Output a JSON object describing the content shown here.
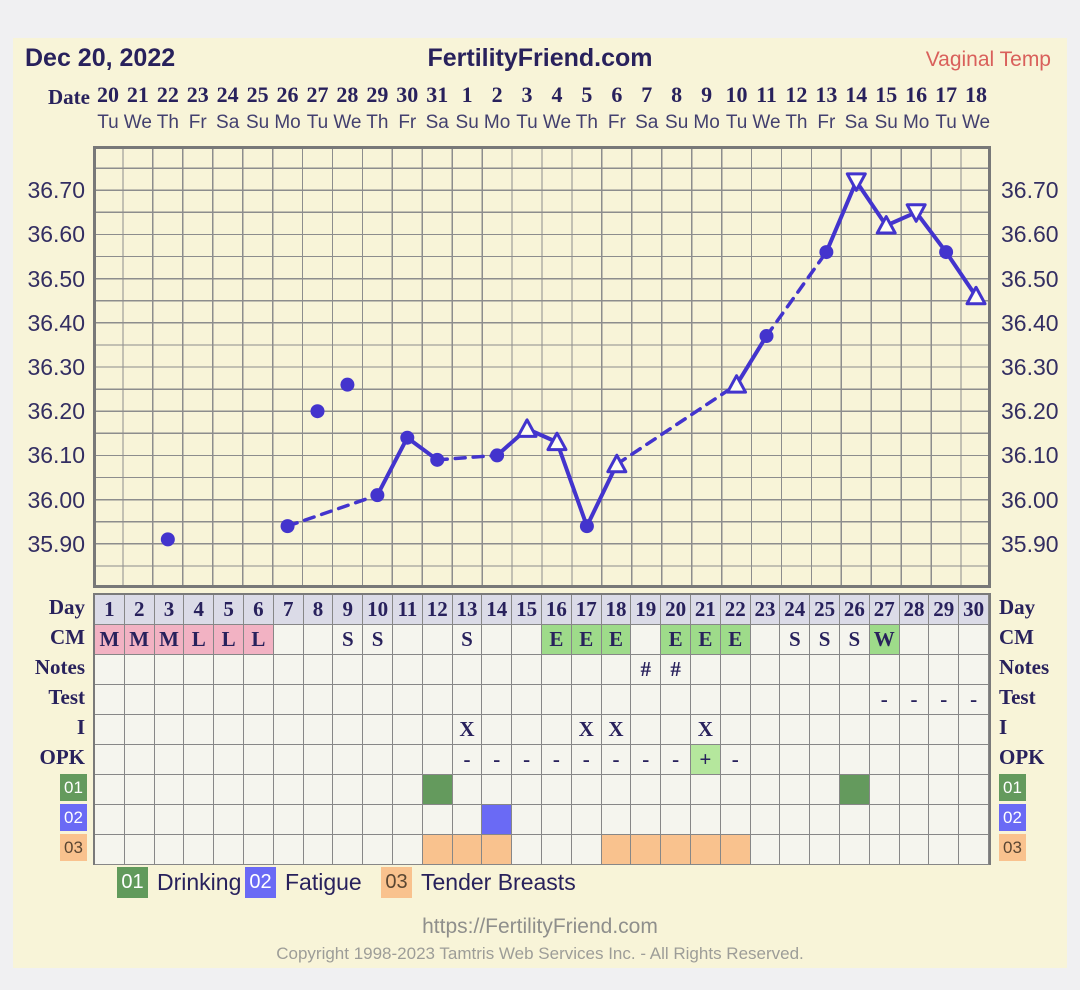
{
  "header": {
    "date": "Dec 20, 2022",
    "site": "FertilityFriend.com",
    "temp_type": "Vaginal Temp"
  },
  "calendar": {
    "date_label": "Date",
    "dates": [
      "20",
      "21",
      "22",
      "23",
      "24",
      "25",
      "26",
      "27",
      "28",
      "29",
      "30",
      "31",
      "1",
      "2",
      "3",
      "4",
      "5",
      "6",
      "7",
      "8",
      "9",
      "10",
      "11",
      "12",
      "13",
      "14",
      "15",
      "16",
      "17",
      "18"
    ],
    "weekdays": [
      "Tu",
      "We",
      "Th",
      "Fr",
      "Sa",
      "Su",
      "Mo",
      "Tu",
      "We",
      "Th",
      "Fr",
      "Sa",
      "Su",
      "Mo",
      "Tu",
      "We",
      "Th",
      "Fr",
      "Sa",
      "Su",
      "Mo",
      "Tu",
      "We",
      "Th",
      "Fr",
      "Sa",
      "Su",
      "Mo",
      "Tu",
      "We"
    ]
  },
  "chart_data": {
    "type": "line",
    "series_name": "Vaginal Temp",
    "x_axis": {
      "label": "Day",
      "columns": 30
    },
    "y_axis": {
      "min": 35.8,
      "max": 36.8,
      "grid_step": 0.05,
      "tick_labels": [
        "36.70",
        "36.60",
        "36.50",
        "36.40",
        "36.30",
        "36.20",
        "36.10",
        "36.00",
        "35.90"
      ]
    },
    "points": [
      {
        "day": 3,
        "temp": 35.91,
        "marker": "circle"
      },
      {
        "day": 7,
        "temp": 35.94,
        "marker": "circle"
      },
      {
        "day": 8,
        "temp": 36.2,
        "marker": "circle"
      },
      {
        "day": 9,
        "temp": 36.26,
        "marker": "circle"
      },
      {
        "day": 10,
        "temp": 36.01,
        "marker": "circle"
      },
      {
        "day": 11,
        "temp": 36.14,
        "marker": "circle"
      },
      {
        "day": 12,
        "temp": 36.09,
        "marker": "circle"
      },
      {
        "day": 14,
        "temp": 36.1,
        "marker": "circle"
      },
      {
        "day": 15,
        "temp": 36.16,
        "marker": "triangle-up"
      },
      {
        "day": 16,
        "temp": 36.13,
        "marker": "triangle-up"
      },
      {
        "day": 17,
        "temp": 35.94,
        "marker": "circle"
      },
      {
        "day": 18,
        "temp": 36.08,
        "marker": "triangle-up"
      },
      {
        "day": 22,
        "temp": 36.26,
        "marker": "triangle-up"
      },
      {
        "day": 23,
        "temp": 36.37,
        "marker": "circle"
      },
      {
        "day": 25,
        "temp": 36.56,
        "marker": "circle"
      },
      {
        "day": 26,
        "temp": 36.72,
        "marker": "triangle-down"
      },
      {
        "day": 27,
        "temp": 36.62,
        "marker": "triangle-up"
      },
      {
        "day": 28,
        "temp": 36.65,
        "marker": "triangle-down"
      },
      {
        "day": 29,
        "temp": 36.56,
        "marker": "circle"
      },
      {
        "day": 30,
        "temp": 36.46,
        "marker": "triangle-up"
      }
    ],
    "segments": [
      {
        "from": 7,
        "to": 10,
        "style": "dashed"
      },
      {
        "from": 10,
        "to": 11,
        "style": "solid"
      },
      {
        "from": 11,
        "to": 12,
        "style": "solid"
      },
      {
        "from": 12,
        "to": 14,
        "style": "dashed"
      },
      {
        "from": 14,
        "to": 15,
        "style": "solid"
      },
      {
        "from": 15,
        "to": 16,
        "style": "solid"
      },
      {
        "from": 16,
        "to": 17,
        "style": "solid"
      },
      {
        "from": 17,
        "to": 18,
        "style": "solid"
      },
      {
        "from": 18,
        "to": 22,
        "style": "dashed"
      },
      {
        "from": 22,
        "to": 23,
        "style": "solid"
      },
      {
        "from": 23,
        "to": 25,
        "style": "dashed"
      },
      {
        "from": 25,
        "to": 26,
        "style": "solid"
      },
      {
        "from": 26,
        "to": 27,
        "style": "solid"
      },
      {
        "from": 27,
        "to": 28,
        "style": "solid"
      },
      {
        "from": 28,
        "to": 29,
        "style": "solid"
      },
      {
        "from": 29,
        "to": 30,
        "style": "solid"
      }
    ]
  },
  "table": {
    "days": [
      "1",
      "2",
      "3",
      "4",
      "5",
      "6",
      "7",
      "8",
      "9",
      "10",
      "11",
      "12",
      "13",
      "14",
      "15",
      "16",
      "17",
      "18",
      "19",
      "20",
      "21",
      "22",
      "23",
      "24",
      "25",
      "26",
      "27",
      "28",
      "29",
      "30"
    ],
    "rows": [
      {
        "id": "day",
        "label": "Day",
        "kind": "days"
      },
      {
        "id": "cm",
        "label": "CM",
        "kind": "cells",
        "cells": [
          {
            "day": 1,
            "text": "M",
            "bg": "pink"
          },
          {
            "day": 2,
            "text": "M",
            "bg": "pink"
          },
          {
            "day": 3,
            "text": "M",
            "bg": "pink"
          },
          {
            "day": 4,
            "text": "L",
            "bg": "pink"
          },
          {
            "day": 5,
            "text": "L",
            "bg": "pink"
          },
          {
            "day": 6,
            "text": "L",
            "bg": "pink"
          },
          {
            "day": 9,
            "text": "S"
          },
          {
            "day": 10,
            "text": "S"
          },
          {
            "day": 13,
            "text": "S"
          },
          {
            "day": 16,
            "text": "E",
            "bg": "green"
          },
          {
            "day": 17,
            "text": "E",
            "bg": "green"
          },
          {
            "day": 18,
            "text": "E",
            "bg": "green"
          },
          {
            "day": 20,
            "text": "E",
            "bg": "green"
          },
          {
            "day": 21,
            "text": "E",
            "bg": "green"
          },
          {
            "day": 22,
            "text": "E",
            "bg": "green"
          },
          {
            "day": 24,
            "text": "S"
          },
          {
            "day": 25,
            "text": "S"
          },
          {
            "day": 26,
            "text": "S"
          },
          {
            "day": 27,
            "text": "W",
            "bg": "green"
          }
        ]
      },
      {
        "id": "notes",
        "label": "Notes",
        "kind": "cells",
        "cells": [
          {
            "day": 19,
            "text": "#"
          },
          {
            "day": 20,
            "text": "#"
          }
        ]
      },
      {
        "id": "test",
        "label": "Test",
        "kind": "cells",
        "cells": [
          {
            "day": 27,
            "text": "-"
          },
          {
            "day": 28,
            "text": "-"
          },
          {
            "day": 29,
            "text": "-"
          },
          {
            "day": 30,
            "text": "-"
          }
        ]
      },
      {
        "id": "i",
        "label": "I",
        "kind": "cells",
        "cells": [
          {
            "day": 13,
            "text": "X"
          },
          {
            "day": 17,
            "text": "X"
          },
          {
            "day": 18,
            "text": "X"
          },
          {
            "day": 21,
            "text": "X"
          }
        ]
      },
      {
        "id": "opk",
        "label": "OPK",
        "kind": "cells",
        "cells": [
          {
            "day": 13,
            "text": "-"
          },
          {
            "day": 14,
            "text": "-"
          },
          {
            "day": 15,
            "text": "-"
          },
          {
            "day": 16,
            "text": "-"
          },
          {
            "day": 17,
            "text": "-"
          },
          {
            "day": 18,
            "text": "-"
          },
          {
            "day": 19,
            "text": "-"
          },
          {
            "day": 20,
            "text": "-"
          },
          {
            "day": 21,
            "text": "+",
            "bg": "opk_pos"
          },
          {
            "day": 22,
            "text": "-"
          }
        ]
      },
      {
        "id": "sym01",
        "label": "01",
        "kind": "cells",
        "badge": "sym01",
        "badge_text": "#ffffff",
        "cells": [
          {
            "day": 12,
            "bg": "sym01"
          },
          {
            "day": 26,
            "bg": "sym01"
          }
        ]
      },
      {
        "id": "sym02",
        "label": "02",
        "kind": "cells",
        "badge": "sym02",
        "badge_text": "#ffffff",
        "cells": [
          {
            "day": 14,
            "bg": "sym02"
          }
        ]
      },
      {
        "id": "sym03",
        "label": "03",
        "kind": "cells",
        "badge": "sym03",
        "badge_text": "#5a4632",
        "cells": [
          {
            "day": 12,
            "bg": "sym03"
          },
          {
            "day": 13,
            "bg": "sym03"
          },
          {
            "day": 14,
            "bg": "sym03"
          },
          {
            "day": 18,
            "bg": "sym03"
          },
          {
            "day": 19,
            "bg": "sym03"
          },
          {
            "day": 20,
            "bg": "sym03"
          },
          {
            "day": 21,
            "bg": "sym03"
          },
          {
            "day": 22,
            "bg": "sym03"
          }
        ]
      }
    ]
  },
  "legend": [
    {
      "id": "01",
      "label": "Drinking",
      "color": "#619a5b",
      "text_color": "#ffffff"
    },
    {
      "id": "02",
      "label": "Fatigue",
      "color": "#6a6af5",
      "text_color": "#ffffff"
    },
    {
      "id": "03",
      "label": "Tender Breasts",
      "color": "#f9c28e",
      "text_color": "#5a4632"
    }
  ],
  "footer": {
    "url": "https://FertilityFriend.com",
    "copyright": "Copyright 1998-2023 Tamtris Web Services Inc. - All Rights Reserved."
  },
  "colors": {
    "line": "#4334cd",
    "marker_fill": "#fffdf2",
    "grid": "#8d8d8d",
    "grid_border": "#787878",
    "navy": "#28215c",
    "temp_label": "#d9605b",
    "day_bg": "#dbdbe7",
    "cell_bg": "#f5f5ee",
    "pink": "#f2b2c3",
    "green": "#9edb8a",
    "opk_pos": "#b5e79d",
    "sym01": "#649a5d",
    "sym02": "#6a6af5",
    "sym03": "#f9c28e"
  }
}
